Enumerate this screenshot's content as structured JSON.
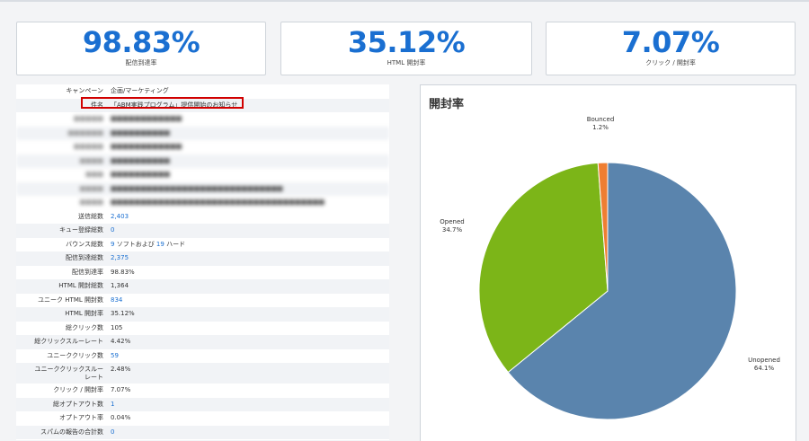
{
  "kpis": [
    {
      "value": "98.83%",
      "label": "配信到達率"
    },
    {
      "value": "35.12%",
      "label": "HTML 開封率"
    },
    {
      "value": "7.07%",
      "label": "クリック / 開封率"
    }
  ],
  "details": {
    "campaign_label": "キャンペーン",
    "campaign_value": "企画/マーケティング",
    "subject_label": "件名",
    "subject_value": "「ABM実践プログラム」提供開始のお知らせ",
    "stats": [
      {
        "label": "送信総数",
        "value": "2,403",
        "link": true
      },
      {
        "label": "キュー登録総数",
        "value": "0",
        "link": true
      },
      {
        "label": "バウンス総数",
        "value_parts": [
          "9",
          " ソフトおよび ",
          "19",
          " ハード"
        ]
      },
      {
        "label": "配信到達総数",
        "value": "2,375",
        "link": true
      },
      {
        "label": "配信到達率",
        "value": "98.83%",
        "link": false
      },
      {
        "label": "HTML 開封総数",
        "value": "1,364",
        "link": false
      },
      {
        "label": "ユニーク HTML 開封数",
        "value": "834",
        "link": true
      },
      {
        "label": "HTML 開封率",
        "value": "35.12%",
        "link": false
      },
      {
        "label": "総クリック数",
        "value": "105",
        "link": false
      },
      {
        "label": "総クリックスルーレート",
        "value": "4.42%",
        "link": false
      },
      {
        "label": "ユニーククリック数",
        "value": "59",
        "link": true
      },
      {
        "label_lines": [
          "ユニーククリックスルー",
          "レート"
        ],
        "value": "2.48%",
        "link": false
      },
      {
        "label": "クリック / 開封率",
        "value": "7.07%",
        "link": false
      },
      {
        "label": "総オプトアウト数",
        "value": "1",
        "link": true
      },
      {
        "label": "オプトアウト率",
        "value": "0.04%",
        "link": false
      },
      {
        "label": "スパムの報告の合計数",
        "value": "0",
        "link": true
      }
    ]
  },
  "chart_data": {
    "type": "pie",
    "title": "開封率",
    "slices": [
      {
        "name": "Unopened",
        "label": "64.1%",
        "value": 64.1,
        "color": "#5a84ad"
      },
      {
        "name": "Opened",
        "label": "34.7%",
        "value": 34.7,
        "color": "#7cb518"
      },
      {
        "name": "Bounced",
        "label": "1.2%",
        "value": 1.2,
        "color": "#ef7e32"
      }
    ]
  }
}
